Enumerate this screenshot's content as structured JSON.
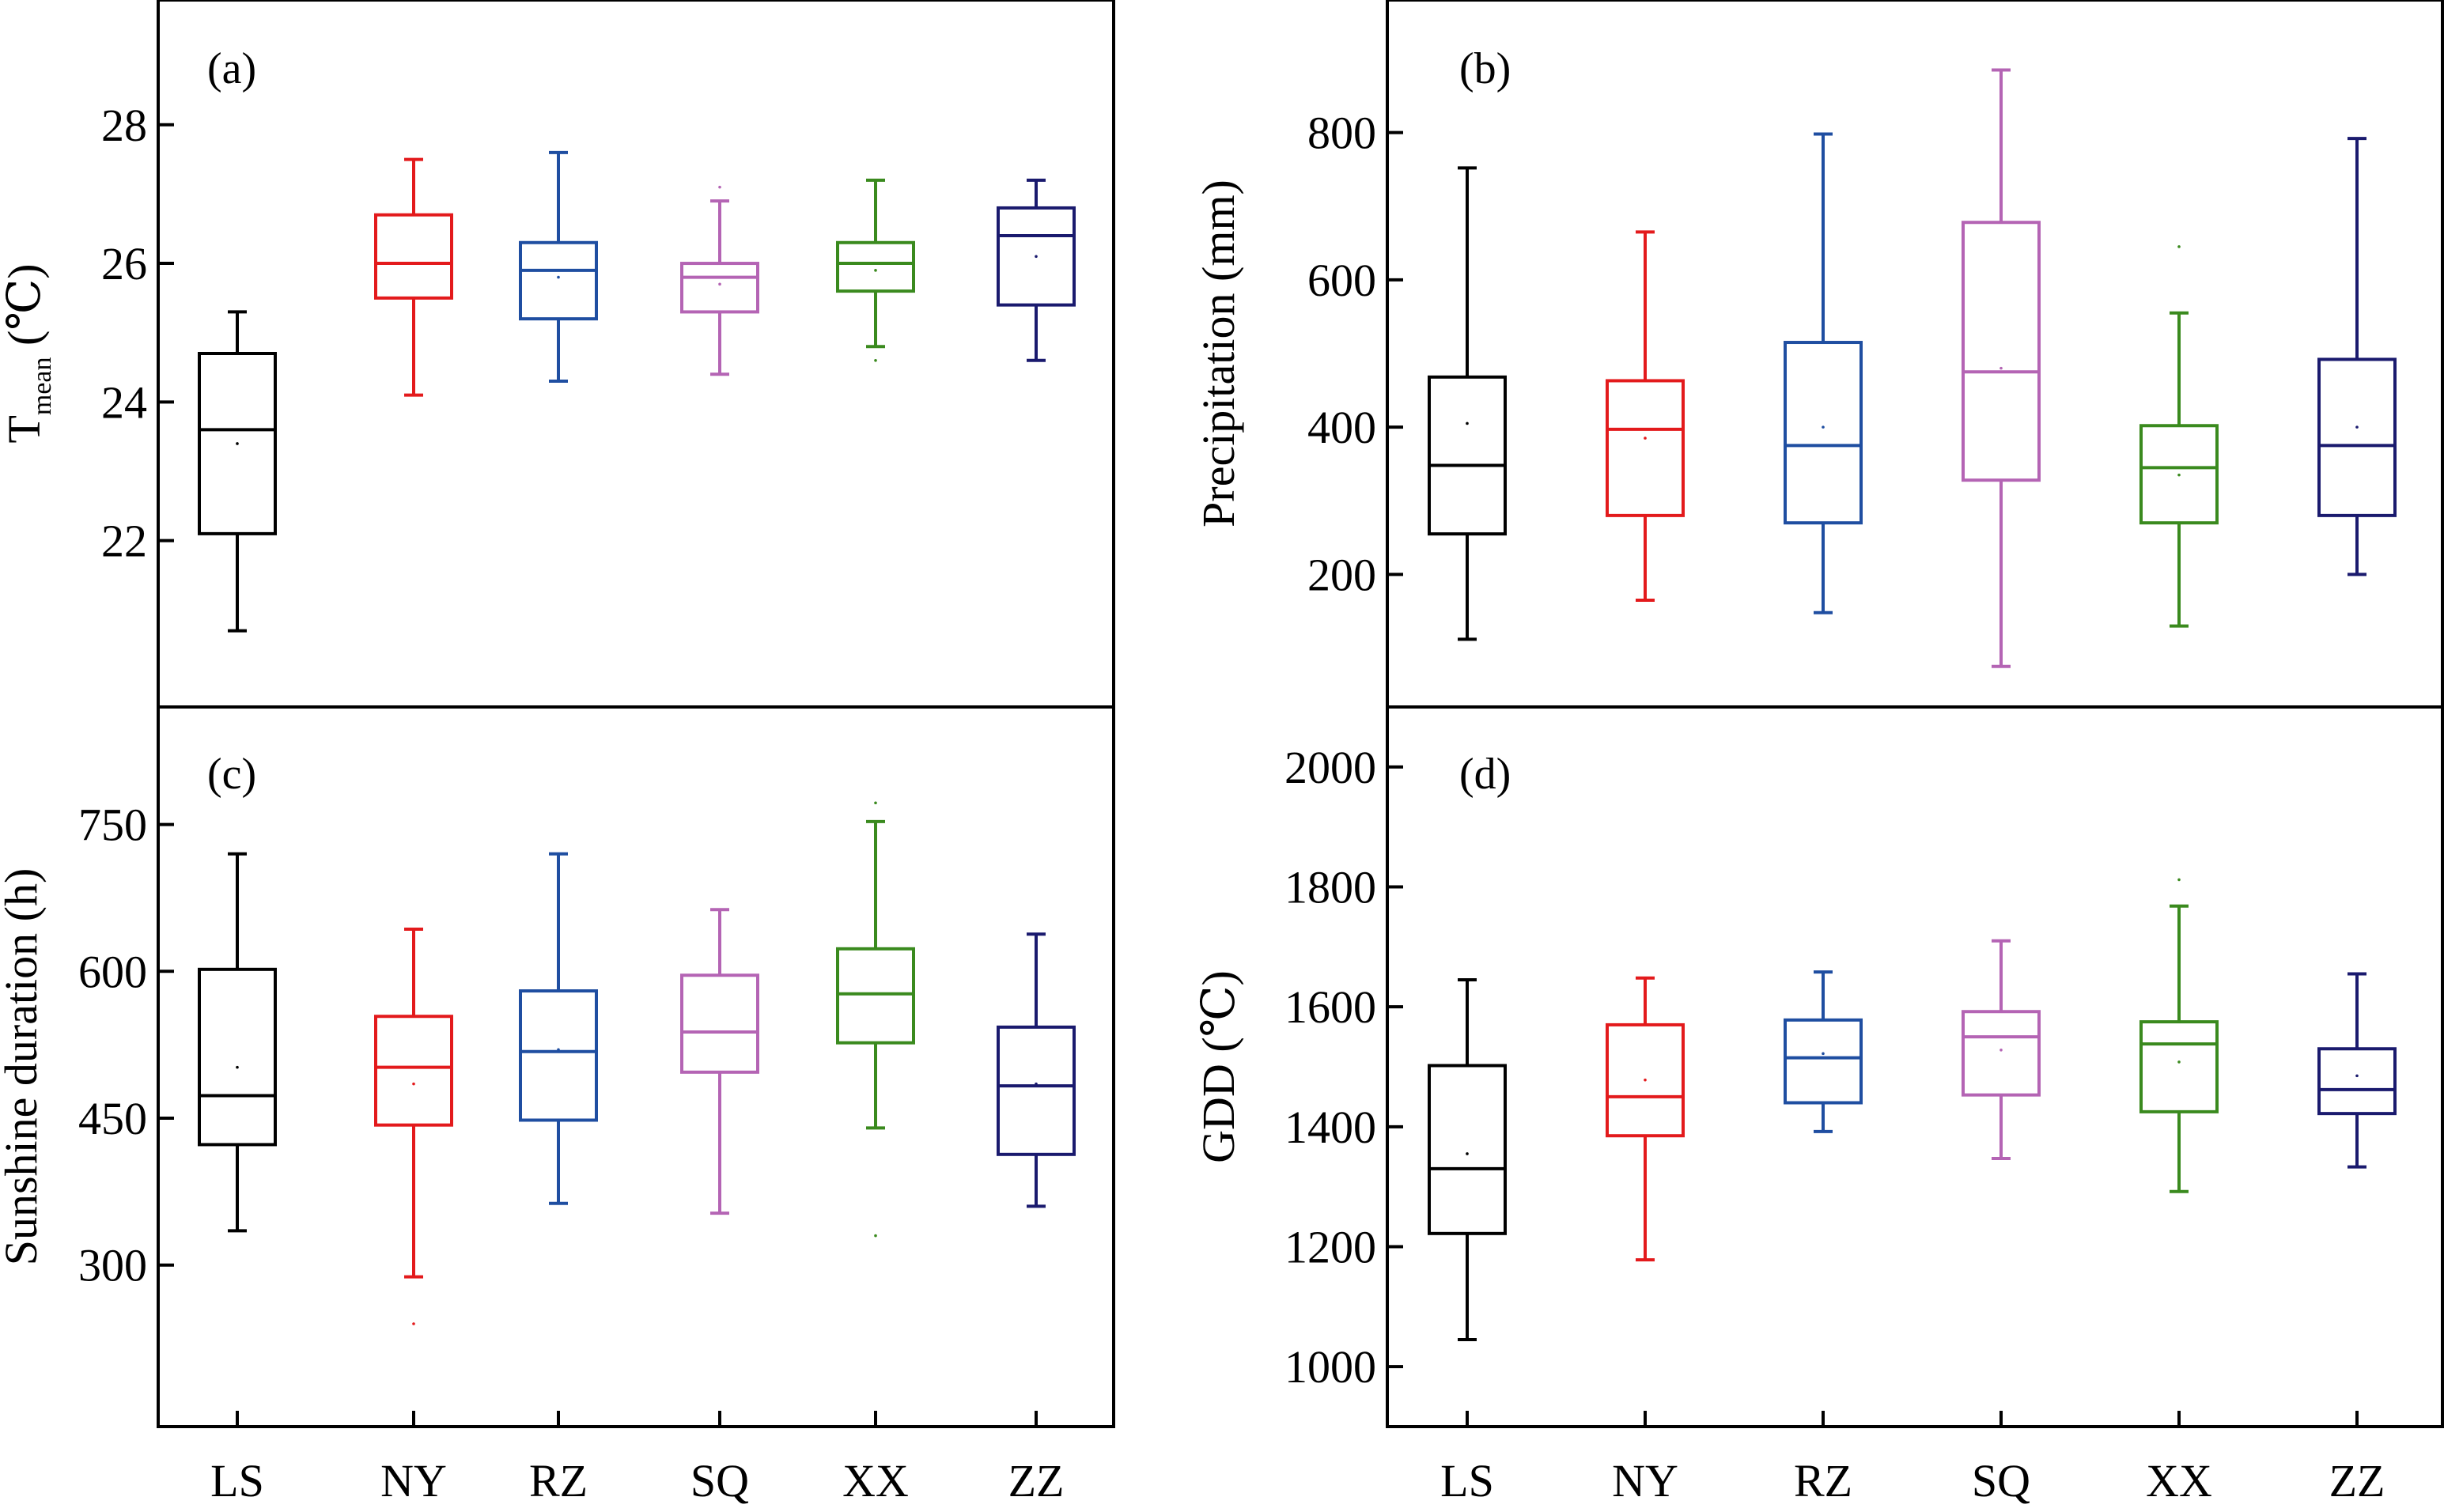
{
  "chart_data": [
    {
      "type": "box",
      "panel_label": "(a)",
      "ylabel": "T",
      "ylabel_subscript": "mean",
      "ylabel_unit": " (℃)",
      "ylim": [
        19.6,
        29.8
      ],
      "yticks": [
        22,
        24,
        26,
        28
      ],
      "ytick_labels": [
        "22",
        "24",
        "26",
        "28"
      ],
      "categories": [
        "LS",
        "NY",
        "RZ",
        "SQ",
        "XX",
        "ZZ"
      ],
      "colors": [
        "#000000",
        "#e31a1c",
        "#1f4ea1",
        "#b464b4",
        "#3a8a1e",
        "#1a1a6e"
      ],
      "boxes": [
        {
          "whisker_low": 20.7,
          "q1": 22.1,
          "median": 23.6,
          "q3": 24.7,
          "whisker_high": 25.3,
          "mean": 23.4,
          "outliers": []
        },
        {
          "whisker_low": 24.1,
          "q1": 25.5,
          "median": 26.0,
          "q3": 26.7,
          "whisker_high": 27.5,
          "mean": 26.0,
          "outliers": []
        },
        {
          "whisker_low": 24.3,
          "q1": 25.2,
          "median": 25.9,
          "q3": 26.3,
          "whisker_high": 27.6,
          "mean": 25.8,
          "outliers": []
        },
        {
          "whisker_low": 24.4,
          "q1": 25.3,
          "median": 25.8,
          "q3": 26.0,
          "whisker_high": 26.9,
          "mean": 25.7,
          "outliers": [
            27.1
          ]
        },
        {
          "whisker_low": 24.8,
          "q1": 25.6,
          "median": 26.0,
          "q3": 26.3,
          "whisker_high": 27.2,
          "mean": 25.9,
          "outliers": [
            24.6
          ]
        },
        {
          "whisker_low": 24.6,
          "q1": 25.4,
          "median": 26.4,
          "q3": 26.8,
          "whisker_high": 27.2,
          "mean": 26.1,
          "outliers": []
        }
      ]
    },
    {
      "type": "box",
      "panel_label": "(b)",
      "ylabel": "Precipitation (mm)",
      "ylim": [
        20,
        980
      ],
      "yticks": [
        200,
        400,
        600,
        800
      ],
      "ytick_labels": [
        "200",
        "400",
        "600",
        "800"
      ],
      "categories": [
        "LS",
        "NY",
        "RZ",
        "SQ",
        "XX",
        "ZZ"
      ],
      "colors": [
        "#000000",
        "#e31a1c",
        "#1f4ea1",
        "#b464b4",
        "#3a8a1e",
        "#1a1a6e"
      ],
      "boxes": [
        {
          "whisker_low": 112,
          "q1": 255,
          "median": 348,
          "q3": 468,
          "whisker_high": 752,
          "mean": 405,
          "outliers": []
        },
        {
          "whisker_low": 165,
          "q1": 280,
          "median": 397,
          "q3": 463,
          "whisker_high": 665,
          "mean": 385,
          "outliers": []
        },
        {
          "whisker_low": 148,
          "q1": 270,
          "median": 375,
          "q3": 515,
          "whisker_high": 798,
          "mean": 400,
          "outliers": []
        },
        {
          "whisker_low": 75,
          "q1": 328,
          "median": 475,
          "q3": 678,
          "whisker_high": 885,
          "mean": 480,
          "outliers": []
        },
        {
          "whisker_low": 130,
          "q1": 270,
          "median": 345,
          "q3": 402,
          "whisker_high": 555,
          "mean": 335,
          "outliers": [
            645
          ]
        },
        {
          "whisker_low": 200,
          "q1": 280,
          "median": 375,
          "q3": 492,
          "whisker_high": 792,
          "mean": 400,
          "outliers": []
        }
      ]
    },
    {
      "type": "box",
      "panel_label": "(c)",
      "ylabel": "Sunshine duration (h)",
      "ylim": [
        135,
        870
      ],
      "yticks": [
        300,
        450,
        600,
        750
      ],
      "ytick_labels": [
        "300",
        "450",
        "600",
        "750"
      ],
      "categories": [
        "LS",
        "NY",
        "RZ",
        "SQ",
        "XX",
        "ZZ"
      ],
      "colors": [
        "#000000",
        "#e31a1c",
        "#1f4ea1",
        "#b464b4",
        "#3a8a1e",
        "#1a1a6e"
      ],
      "boxes": [
        {
          "whisker_low": 335,
          "q1": 423,
          "median": 473,
          "q3": 602,
          "whisker_high": 720,
          "mean": 502,
          "outliers": []
        },
        {
          "whisker_low": 288,
          "q1": 443,
          "median": 502,
          "q3": 554,
          "whisker_high": 643,
          "mean": 485,
          "outliers": [
            240
          ]
        },
        {
          "whisker_low": 363,
          "q1": 448,
          "median": 518,
          "q3": 580,
          "whisker_high": 720,
          "mean": 520,
          "outliers": []
        },
        {
          "whisker_low": 353,
          "q1": 497,
          "median": 538,
          "q3": 596,
          "whisker_high": 663,
          "mean": 538,
          "outliers": []
        },
        {
          "whisker_low": 440,
          "q1": 527,
          "median": 577,
          "q3": 623,
          "whisker_high": 753,
          "mean": 577,
          "outliers": [
            330,
            772
          ]
        },
        {
          "whisker_low": 360,
          "q1": 413,
          "median": 483,
          "q3": 543,
          "whisker_high": 638,
          "mean": 485,
          "outliers": []
        }
      ]
    },
    {
      "type": "box",
      "panel_label": "(d)",
      "ylabel": "GDD (℃)",
      "ylim": [
        900,
        2100
      ],
      "yticks": [
        1000,
        1200,
        1400,
        1600,
        1800,
        2000
      ],
      "ytick_labels": [
        "1000",
        "1200",
        "1400",
        "1600",
        "1800",
        "2000"
      ],
      "categories": [
        "LS",
        "NY",
        "RZ",
        "SQ",
        "XX",
        "ZZ"
      ],
      "colors": [
        "#000000",
        "#e31a1c",
        "#1f4ea1",
        "#b464b4",
        "#3a8a1e",
        "#1a1a6e"
      ],
      "boxes": [
        {
          "whisker_low": 1045,
          "q1": 1222,
          "median": 1330,
          "q3": 1502,
          "whisker_high": 1645,
          "mean": 1355,
          "outliers": []
        },
        {
          "whisker_low": 1178,
          "q1": 1385,
          "median": 1450,
          "q3": 1570,
          "whisker_high": 1648,
          "mean": 1478,
          "outliers": []
        },
        {
          "whisker_low": 1392,
          "q1": 1440,
          "median": 1515,
          "q3": 1578,
          "whisker_high": 1658,
          "mean": 1522,
          "outliers": []
        },
        {
          "whisker_low": 1347,
          "q1": 1453,
          "median": 1550,
          "q3": 1592,
          "whisker_high": 1710,
          "mean": 1528,
          "outliers": []
        },
        {
          "whisker_low": 1292,
          "q1": 1425,
          "median": 1538,
          "q3": 1575,
          "whisker_high": 1768,
          "mean": 1508,
          "outliers": [
            1812
          ]
        },
        {
          "whisker_low": 1333,
          "q1": 1422,
          "median": 1462,
          "q3": 1530,
          "whisker_high": 1655,
          "mean": 1485,
          "outliers": []
        }
      ]
    }
  ]
}
